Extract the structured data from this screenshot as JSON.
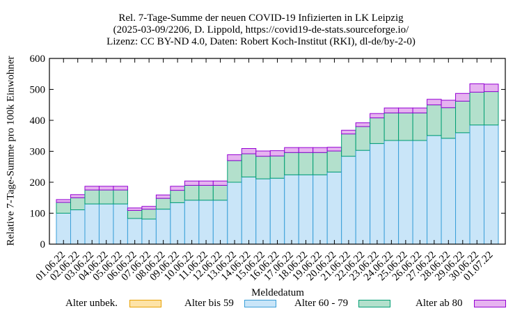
{
  "title_lines": [
    "Rel. 7-Tage-Summe der neuen COVID-19 Infizierten in LK Leipzig",
    "(2025-03-09/2206, D. Lippold, https://covid19-de-stats.sourceforge.io/",
    "Lizenz: CC BY-ND 4.0, Daten: Robert Koch-Institut (RKI), dl-de/by-2-0)"
  ],
  "chart_data": {
    "type": "bar",
    "stacked": true,
    "xlabel": "Meldedatum",
    "ylabel": "Relative 7-Tage-Summe pro 100k Einwohner",
    "ylim": [
      0,
      600
    ],
    "yticks": [
      0,
      100,
      200,
      300,
      400,
      500,
      600
    ],
    "legend_position": "bottom",
    "categories": [
      "01.06.22",
      "02.06.22",
      "03.06.22",
      "04.06.22",
      "05.06.22",
      "06.06.22",
      "07.06.22",
      "08.06.22",
      "09.06.22",
      "10.06.22",
      "11.06.22",
      "12.06.22",
      "13.06.22",
      "14.06.22",
      "15.06.22",
      "16.06.22",
      "17.06.22",
      "18.06.22",
      "19.06.22",
      "20.06.22",
      "21.06.22",
      "22.06.22",
      "23.06.22",
      "24.06.22",
      "25.06.22",
      "26.06.22",
      "27.06.22",
      "28.06.22",
      "29.06.22",
      "30.06.22",
      "01.07.22"
    ],
    "series": [
      {
        "name": "Alter unbek.",
        "fill": "#fde3a7",
        "stroke": "#e8a000",
        "values": [
          0,
          0,
          0,
          0,
          0,
          0,
          0,
          0,
          0,
          0,
          0,
          0,
          0,
          0,
          0,
          0,
          0,
          0,
          0,
          0,
          0,
          0,
          0,
          0,
          0,
          0,
          0,
          0,
          0,
          0,
          0
        ]
      },
      {
        "name": "Alter bis 59",
        "fill": "#c9e5f8",
        "stroke": "#3a9fd8",
        "values": [
          100,
          111,
          130,
          130,
          130,
          83,
          81,
          113,
          134,
          142,
          142,
          142,
          200,
          217,
          211,
          213,
          224,
          224,
          224,
          233,
          284,
          303,
          325,
          335,
          335,
          335,
          351,
          342,
          360,
          385,
          385
        ]
      },
      {
        "name": "Alter 60 - 79",
        "fill": "#b3e0cc",
        "stroke": "#009e73",
        "values": [
          35,
          39,
          45,
          45,
          45,
          26,
          32,
          35,
          40,
          48,
          48,
          48,
          70,
          75,
          73,
          72,
          72,
          72,
          72,
          68,
          72,
          77,
          83,
          89,
          89,
          89,
          99,
          99,
          102,
          106,
          108
        ]
      },
      {
        "name": "Alter ab 80",
        "fill": "#e6b3f0",
        "stroke": "#9400d3",
        "values": [
          9,
          10,
          12,
          12,
          12,
          8,
          9,
          11,
          13,
          14,
          14,
          14,
          19,
          17,
          17,
          17,
          16,
          16,
          16,
          12,
          12,
          12,
          14,
          16,
          16,
          16,
          18,
          24,
          25,
          27,
          24
        ]
      }
    ]
  }
}
